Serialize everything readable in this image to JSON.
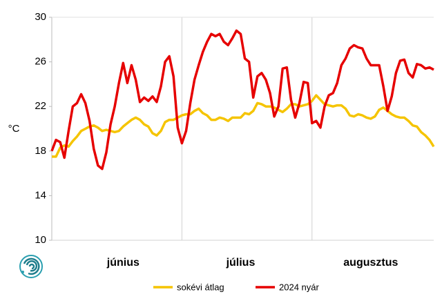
{
  "chart_data": {
    "type": "line",
    "y_label": "°C",
    "categories": [
      null,
      null,
      null,
      null,
      null,
      null,
      null,
      null,
      null,
      null,
      null,
      null,
      null,
      null,
      null,
      null,
      null,
      "június",
      null,
      null,
      null,
      null,
      null,
      null,
      null,
      null,
      null,
      null,
      null,
      null,
      null,
      null,
      null,
      null,
      null,
      null,
      null,
      null,
      null,
      null,
      null,
      null,
      null,
      null,
      null,
      "július",
      null,
      null,
      null,
      null,
      null,
      null,
      null,
      null,
      null,
      null,
      null,
      null,
      null,
      null,
      null,
      null,
      null,
      null,
      null,
      null,
      null,
      null,
      null,
      null,
      null,
      null,
      null,
      null,
      null,
      null,
      "augusztus",
      null,
      null,
      null,
      null,
      null,
      null,
      null,
      null,
      null,
      null,
      null,
      null,
      null,
      null,
      null
    ],
    "series": [
      {
        "name": "sokévi átlag",
        "color": "#f5c400",
        "values": [
          17.5,
          17.5,
          18.3,
          18.5,
          18.4,
          18.9,
          19.3,
          19.8,
          20.0,
          20.2,
          20.3,
          20.1,
          19.8,
          19.9,
          19.8,
          19.7,
          19.8,
          20.2,
          20.5,
          20.8,
          21.0,
          20.8,
          20.4,
          20.2,
          19.6,
          19.4,
          19.8,
          20.6,
          20.8,
          20.8,
          21.0,
          21.2,
          21.3,
          21.3,
          21.6,
          21.8,
          21.4,
          21.2,
          20.8,
          20.8,
          21.0,
          20.9,
          20.7,
          21.0,
          21.0,
          21.0,
          21.4,
          21.3,
          21.6,
          22.3,
          22.2,
          22.0,
          22.0,
          21.9,
          21.7,
          21.5,
          21.8,
          22.2,
          22.2,
          22.0,
          22.1,
          22.2,
          22.5,
          23.0,
          22.6,
          22.2,
          22.1,
          22.0,
          22.1,
          22.1,
          21.8,
          21.2,
          21.1,
          21.3,
          21.2,
          21.0,
          20.9,
          21.1,
          21.7,
          21.9,
          21.6,
          21.3,
          21.1,
          21.0,
          21.0,
          20.7,
          20.3,
          20.2,
          19.7,
          19.4,
          19.0,
          18.4
        ]
      },
      {
        "name": "2024 nyár",
        "color": "#e60000",
        "values": [
          18.0,
          19.0,
          18.8,
          17.4,
          19.8,
          22.0,
          22.3,
          23.1,
          22.3,
          20.7,
          18.2,
          16.7,
          16.4,
          17.9,
          20.4,
          22.0,
          24.1,
          25.9,
          24.1,
          25.7,
          24.4,
          22.4,
          22.8,
          22.5,
          22.9,
          22.4,
          23.8,
          26.0,
          26.5,
          24.7,
          20.1,
          18.7,
          19.8,
          22.3,
          24.4,
          25.7,
          26.9,
          27.8,
          28.5,
          28.3,
          28.5,
          27.8,
          27.5,
          28.1,
          28.8,
          28.5,
          26.3,
          26.0,
          22.8,
          24.7,
          25.0,
          24.4,
          23.2,
          21.1,
          22.0,
          25.4,
          25.5,
          22.6,
          21.0,
          22.3,
          24.2,
          24.1,
          20.5,
          20.7,
          20.1,
          22.0,
          23.0,
          23.2,
          24.1,
          25.7,
          26.3,
          27.2,
          27.5,
          27.3,
          27.2,
          26.3,
          25.7,
          25.7,
          25.7,
          23.8,
          21.6,
          22.9,
          25.0,
          26.1,
          26.2,
          25.0,
          24.6,
          25.8,
          25.7,
          25.4,
          25.5,
          25.3
        ]
      }
    ],
    "ylim": [
      10,
      30
    ],
    "yticks": [
      10,
      14,
      18,
      22,
      26,
      30
    ],
    "legend": "bottom"
  }
}
